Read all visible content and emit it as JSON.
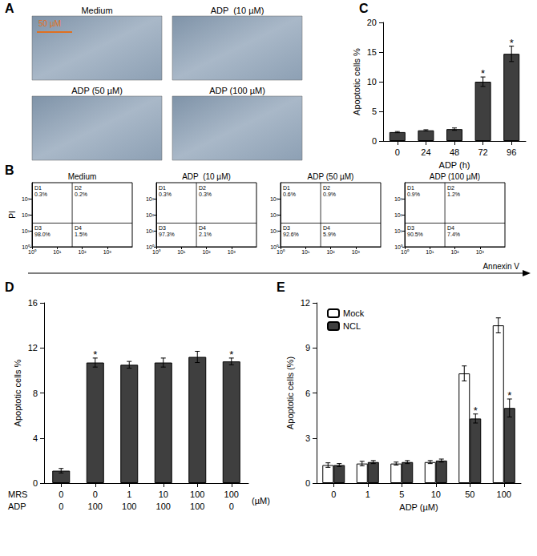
{
  "panel_labels": [
    "A",
    "B",
    "C",
    "D",
    "E"
  ],
  "micrographs": {
    "panel": "A",
    "scale_bar": "50 µM",
    "titles": [
      "Medium",
      "ADP  (10 µM)",
      "ADP (50 µM)",
      "ADP (100 µM)"
    ]
  },
  "shared_axis_labels": {
    "panel": "B",
    "x": "Annexin V"
  },
  "chart_data": [
    {
      "panel": "B",
      "type": "quadrant",
      "title": "Medium",
      "ylabel": "PI",
      "log": true,
      "grid": false,
      "xlim": [
        1,
        10000
      ],
      "ylim": [
        1,
        10000
      ],
      "xticks": [
        {
          "value": 1,
          "label": "10⁰"
        },
        {
          "value": 10,
          "label": "10¹"
        },
        {
          "value": 100,
          "label": "10²"
        },
        {
          "value": 1000,
          "label": "10³"
        }
      ],
      "yticks": [
        {
          "value": 1,
          "label": "10⁰"
        },
        {
          "value": 10,
          "label": "10¹"
        },
        {
          "value": 100,
          "label": "10²"
        },
        {
          "value": 1000,
          "label": "10³"
        }
      ],
      "gate": {
        "x": 40,
        "y": 30
      },
      "quadrants": [
        {
          "name": "D1",
          "value": 0.3,
          "label": "0.3%"
        },
        {
          "name": "D2",
          "value": 0.2,
          "label": "0.2%"
        },
        {
          "name": "D3",
          "value": 98.0,
          "label": "98.0%"
        },
        {
          "name": "D4",
          "value": 1.5,
          "label": "1.5%"
        }
      ]
    },
    {
      "panel": "B",
      "type": "quadrant",
      "title": "ADP  (10 µM)",
      "log": true,
      "grid": false,
      "xlim": [
        1,
        10000
      ],
      "ylim": [
        1,
        10000
      ],
      "xticks": [
        {
          "value": 1,
          "label": "10⁰"
        },
        {
          "value": 10,
          "label": "10¹"
        },
        {
          "value": 100,
          "label": "10²"
        },
        {
          "value": 1000,
          "label": "10³"
        }
      ],
      "yticks": [
        {
          "value": 1,
          "label": "10⁰"
        },
        {
          "value": 10,
          "label": "10¹"
        },
        {
          "value": 100,
          "label": "10²"
        },
        {
          "value": 1000,
          "label": "10³"
        }
      ],
      "gate": {
        "x": 40,
        "y": 30
      },
      "quadrants": [
        {
          "name": "D1",
          "value": 0.3,
          "label": "0.3%"
        },
        {
          "name": "D2",
          "value": 0.3,
          "label": "0.3%"
        },
        {
          "name": "D3",
          "value": 97.3,
          "label": "97.3%"
        },
        {
          "name": "D4",
          "value": 2.1,
          "label": "2.1%"
        }
      ]
    },
    {
      "panel": "B",
      "type": "quadrant",
      "title": "ADP (50 µM)",
      "log": true,
      "grid": false,
      "xlim": [
        1,
        10000
      ],
      "ylim": [
        1,
        10000
      ],
      "xticks": [
        {
          "value": 1,
          "label": "10⁰"
        },
        {
          "value": 10,
          "label": "10¹"
        },
        {
          "value": 100,
          "label": "10²"
        },
        {
          "value": 1000,
          "label": "10³"
        }
      ],
      "yticks": [
        {
          "value": 1,
          "label": "10⁰"
        },
        {
          "value": 10,
          "label": "10¹"
        },
        {
          "value": 100,
          "label": "10²"
        },
        {
          "value": 1000,
          "label": "10³"
        }
      ],
      "gate": {
        "x": 40,
        "y": 30
      },
      "quadrants": [
        {
          "name": "D1",
          "value": 0.6,
          "label": "0.6%"
        },
        {
          "name": "D2",
          "value": 0.9,
          "label": "0.9%"
        },
        {
          "name": "D3",
          "value": 92.6,
          "label": "92.6%"
        },
        {
          "name": "D4",
          "value": 5.9,
          "label": "5.9%"
        }
      ]
    },
    {
      "panel": "B",
      "type": "quadrant",
      "title": "ADP (100 µM)",
      "log": true,
      "grid": false,
      "xlim": [
        1,
        10000
      ],
      "ylim": [
        1,
        10000
      ],
      "xticks": [
        {
          "value": 1,
          "label": "10⁰"
        },
        {
          "value": 10,
          "label": "10¹"
        },
        {
          "value": 100,
          "label": "10²"
        },
        {
          "value": 1000,
          "label": "10³"
        }
      ],
      "yticks": [
        {
          "value": 1,
          "label": "10⁰"
        },
        {
          "value": 10,
          "label": "10¹"
        },
        {
          "value": 100,
          "label": "10²"
        },
        {
          "value": 1000,
          "label": "10³"
        }
      ],
      "gate": {
        "x": 40,
        "y": 30
      },
      "quadrants": [
        {
          "name": "D1",
          "value": 0.9,
          "label": "0.9%"
        },
        {
          "name": "D2",
          "value": 1.2,
          "label": "1.2%"
        },
        {
          "name": "D3",
          "value": 90.5,
          "label": "90.5%"
        },
        {
          "name": "D4",
          "value": 7.4,
          "label": "7.4%"
        }
      ]
    },
    {
      "panel": "C",
      "type": "bar",
      "grid": false,
      "xlabel": "ADP (h)",
      "ylabel": "Apoptotic cells %",
      "categories": [
        "0",
        "24",
        "48",
        "72",
        "96"
      ],
      "values": [
        1.5,
        1.8,
        2.0,
        10.0,
        14.7
      ],
      "errors": [
        0.1,
        0.1,
        0.2,
        0.8,
        1.3
      ],
      "color": "#3f3f3f",
      "ylim": [
        0,
        20
      ],
      "yticks": [
        0,
        5,
        10,
        15,
        20
      ],
      "annotations": [
        {
          "index": 3,
          "text": "*"
        },
        {
          "index": 4,
          "text": "*"
        }
      ]
    },
    {
      "panel": "D",
      "type": "bar",
      "grid": false,
      "ylabel": "Apoptotic cells %",
      "x_rows": [
        {
          "label": "MRS",
          "values": [
            0,
            0,
            1,
            10,
            100,
            100
          ]
        },
        {
          "label": "ADP",
          "values": [
            0,
            100,
            100,
            100,
            100,
            0
          ]
        }
      ],
      "x_unit": "(µM)",
      "values": [
        1.1,
        10.7,
        10.5,
        10.7,
        11.2,
        10.8
      ],
      "errors": [
        0.2,
        0.4,
        0.3,
        0.4,
        0.5,
        0.3
      ],
      "color": "#3f3f3f",
      "ylim": [
        0,
        16
      ],
      "yticks": [
        0,
        4,
        8,
        12,
        16
      ],
      "annotations": [
        {
          "index": 1,
          "text": "*"
        },
        {
          "index": 5,
          "text": "*"
        }
      ]
    },
    {
      "panel": "E",
      "type": "bar",
      "grid": false,
      "xlabel": "ADP (µM)",
      "ylabel": "Apoptotic cells (%)",
      "legend": "upper left",
      "categories": [
        "0",
        "1",
        "5",
        "10",
        "50",
        "100"
      ],
      "series": [
        {
          "name": "Mock",
          "color": "#ffffff",
          "values": [
            1.2,
            1.3,
            1.3,
            1.4,
            7.3,
            10.5
          ],
          "errors": [
            0.15,
            0.15,
            0.1,
            0.1,
            0.5,
            0.5
          ]
        },
        {
          "name": "NCL",
          "color": "#3f3f3f",
          "values": [
            1.2,
            1.4,
            1.4,
            1.5,
            4.3,
            5.0
          ],
          "errors": [
            0.1,
            0.1,
            0.1,
            0.1,
            0.3,
            0.6
          ]
        }
      ],
      "ylim": [
        0,
        12
      ],
      "yticks": [
        0,
        3,
        6,
        9,
        12
      ],
      "annotations": [
        {
          "series": "NCL",
          "index": 4,
          "text": "*"
        },
        {
          "series": "NCL",
          "index": 5,
          "text": "*"
        }
      ]
    }
  ]
}
